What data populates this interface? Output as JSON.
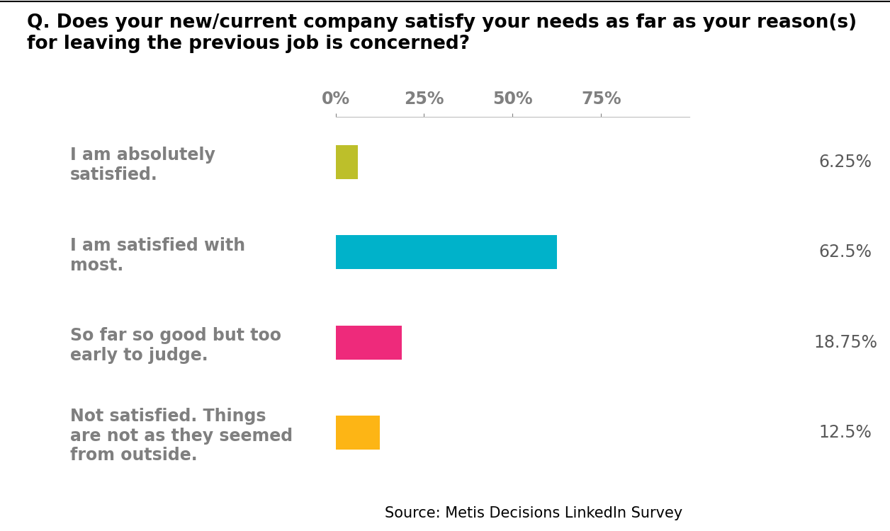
{
  "chart_data": {
    "type": "bar",
    "orientation": "horizontal",
    "title": "Q. Does your new/current company satisfy your needs as far as your reason(s) for leaving the previous job is concerned?",
    "source": "Source: Metis Decisions LinkedIn Survey",
    "categories": [
      "I am absolutely satisfied.",
      "I am satisfied with most.",
      "So far so good but too early to judge.",
      "Not satisfied. Things are not as they seemed from outside."
    ],
    "values": [
      6.25,
      62.5,
      18.75,
      12.5
    ],
    "value_labels": [
      "6.25%",
      "62.5%",
      "18.75%",
      "12.5%"
    ],
    "colors": [
      "#bdbf2a",
      "#00b2ca",
      "#ee2a7b",
      "#fdb515"
    ],
    "xlim": [
      0,
      100
    ],
    "xticks": [
      {
        "value": 0,
        "label": "0%"
      },
      {
        "value": 25,
        "label": "25%"
      },
      {
        "value": 50,
        "label": "50%"
      },
      {
        "value": 75,
        "label": "75%"
      }
    ],
    "grid": false,
    "data_labels": true
  }
}
